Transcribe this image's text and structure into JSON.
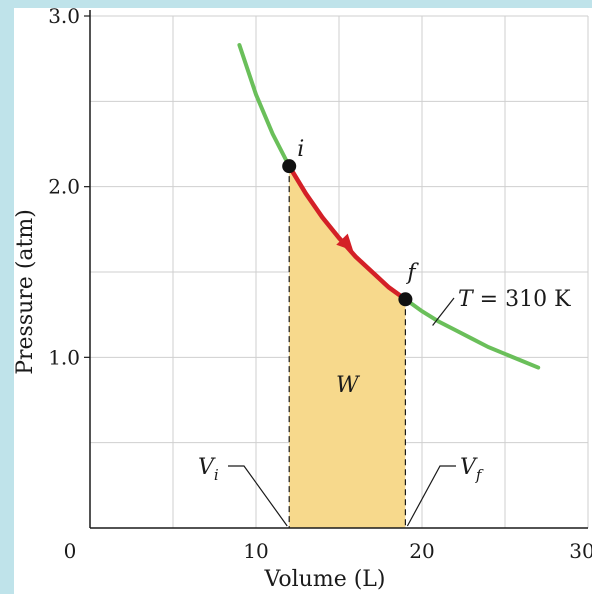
{
  "chart_data": {
    "type": "line",
    "title": "",
    "xlabel": "Volume (L)",
    "ylabel": "Pressure (atm)",
    "xlim": [
      0,
      30
    ],
    "ylim": [
      0,
      3.0
    ],
    "grid": true,
    "x_ticks": [
      0,
      10,
      20,
      30
    ],
    "x_tick_labels": [
      "0",
      "10",
      "20",
      "30"
    ],
    "y_ticks": [
      1.0,
      2.0,
      3.0
    ],
    "y_tick_labels": [
      "1.0",
      "2.0",
      "3.0"
    ],
    "series": [
      {
        "name": "T = 310 K",
        "role": "isotherm",
        "color": "#6abf5a",
        "x": [
          9.0,
          10.0,
          11.0,
          12.0,
          13.0,
          14.0,
          15.0,
          16.0,
          17.0,
          18.0,
          19.0,
          20.0,
          21.0,
          22.0,
          23.0,
          24.0,
          25.0,
          26.0,
          27.0
        ],
        "y": [
          2.83,
          2.54,
          2.31,
          2.12,
          1.96,
          1.82,
          1.7,
          1.59,
          1.5,
          1.41,
          1.34,
          1.27,
          1.21,
          1.16,
          1.11,
          1.06,
          1.02,
          0.98,
          0.94
        ]
      },
      {
        "name": "",
        "role": "process",
        "color": "#d42027",
        "x": [
          12.0,
          13.0,
          14.0,
          15.0,
          16.0,
          17.0,
          18.0,
          19.0
        ],
        "y": [
          2.12,
          1.96,
          1.82,
          1.7,
          1.59,
          1.5,
          1.41,
          1.34
        ]
      }
    ],
    "points": [
      {
        "label": "i",
        "x": 12.0,
        "y": 2.12
      },
      {
        "label": "f",
        "x": 19.0,
        "y": 1.34
      }
    ],
    "area_fill": {
      "label": "W",
      "x_from": 12.0,
      "x_to": 19.0,
      "color": "#f7d98c"
    },
    "annotations": {
      "isotherm_label": "T = 310 K",
      "vi_label": "Vi",
      "vf_label": "Vf",
      "area_label": "W"
    },
    "colors": {
      "grid": "#cfcfcf",
      "axis": "#1a1a1a",
      "dash": "#1a1a1a",
      "point": "#111111"
    }
  }
}
